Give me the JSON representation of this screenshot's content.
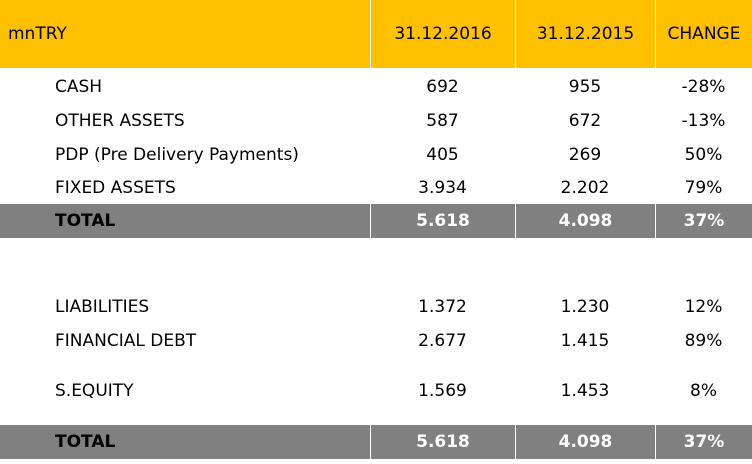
{
  "header": {
    "unit": "mnTRY",
    "col1": "31.12.2016",
    "col2": "31.12.2015",
    "col3": "CHANGE"
  },
  "assets": [
    {
      "label": "CASH",
      "v2016": "692",
      "v2015": "955",
      "change": "-28%"
    },
    {
      "label": "OTHER ASSETS",
      "v2016": "587",
      "v2015": "672",
      "change": "-13%"
    },
    {
      "label": "PDP (Pre Delivery Payments)",
      "v2016": "405",
      "v2015": "269",
      "change": "50%"
    },
    {
      "label": "FIXED ASSETS",
      "v2016": "3.934",
      "v2015": "2.202",
      "change": "79%"
    }
  ],
  "assets_total": {
    "label": "TOTAL",
    "v2016": "5.618",
    "v2015": "4.098",
    "change": "37%"
  },
  "liabilities": [
    {
      "label": "LIABILITIES",
      "v2016": "1.372",
      "v2015": "1.230",
      "change": "12%"
    },
    {
      "label": "FINANCIAL DEBT",
      "v2016": "2.677",
      "v2015": "1.415",
      "change": "89%"
    },
    {
      "label": "S.EQUITY",
      "v2016": "1.569",
      "v2015": "1.453",
      "change": "8%"
    }
  ],
  "liabilities_total": {
    "label": "TOTAL",
    "v2016": "5.618",
    "v2015": "4.098",
    "change": "37%"
  },
  "colors": {
    "header_bg": "#ffc000",
    "total_bg": "#808080",
    "total_text": "#ffffff"
  }
}
